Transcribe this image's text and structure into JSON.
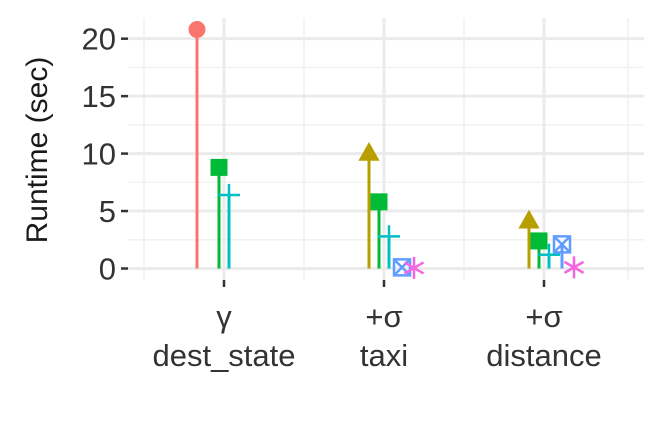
{
  "chart_data": {
    "type": "lollipop",
    "ylabel": "Runtime (sec)",
    "ylim": [
      -1,
      21.8
    ],
    "yticks": [
      0,
      5,
      10,
      15,
      20
    ],
    "grid": true,
    "legend": "none",
    "categories": [
      {
        "line1": "γ",
        "line2": "dest_state"
      },
      {
        "line1": "+σ",
        "line2": "taxi"
      },
      {
        "line1": "+σ",
        "line2": "distance"
      }
    ],
    "series": [
      {
        "color": "#F8766D",
        "shape": "circle",
        "values": [
          20.8,
          null,
          null
        ]
      },
      {
        "color": "#B79F00",
        "shape": "triangle",
        "values": [
          null,
          10.0,
          4.1
        ]
      },
      {
        "color": "#00BA38",
        "shape": "square",
        "values": [
          8.8,
          5.8,
          2.4
        ]
      },
      {
        "color": "#00BFC4",
        "shape": "plus",
        "values": [
          6.4,
          2.8,
          1.2
        ]
      },
      {
        "color": "#619CFF",
        "shape": "square-cross",
        "values": [
          null,
          0.1,
          2.1
        ]
      },
      {
        "color": "#F564E3",
        "shape": "asterisk",
        "values": [
          null,
          0.05,
          0.1
        ]
      }
    ]
  }
}
